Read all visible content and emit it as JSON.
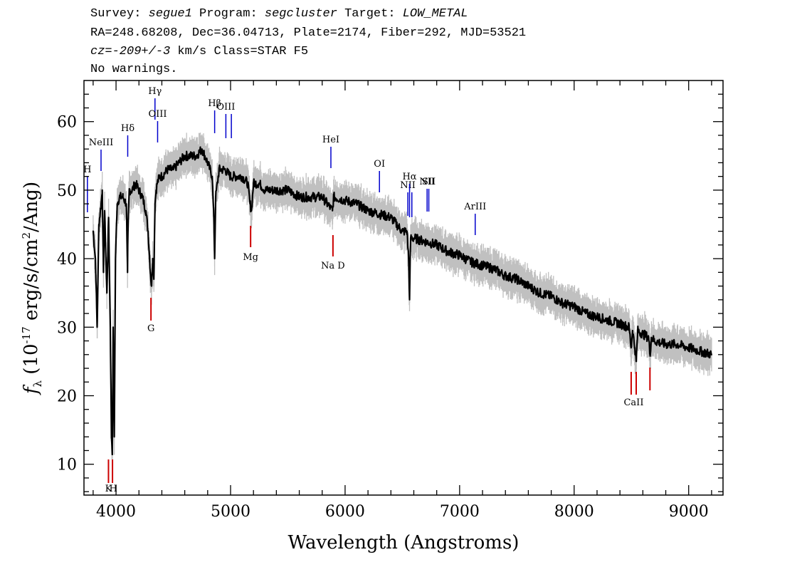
{
  "header": {
    "survey_label": "Survey:",
    "survey": "segue1",
    "program_label": "Program:",
    "program": "segcluster",
    "target_label": "Target:",
    "target": "LOW_METAL",
    "line2": "RA=248.68208, Dec=36.04713, Plate=2174, Fiber=292, MJD=53521",
    "cz_prefix": "cz=",
    "cz_value": "-209+/-3",
    "cz_suffix": " km/s Class=STAR F5",
    "line4": "No warnings."
  },
  "chart_data": {
    "type": "line",
    "xlabel": "Wavelength (Angstroms)",
    "ylabel": "f_λ (10^-17 erg/s/cm^2/Ang)",
    "xlim": [
      3720,
      9300
    ],
    "ylim": [
      5.5,
      66
    ],
    "xticks": [
      4000,
      5000,
      6000,
      7000,
      8000,
      9000
    ],
    "yticks": [
      10,
      20,
      30,
      40,
      50,
      60
    ],
    "grid": false,
    "series": [
      {
        "color": "#000000",
        "noise_color": "#c0c0c0",
        "x": [
          3800,
          3820,
          3835,
          3850,
          3870,
          3880,
          3890,
          3900,
          3920,
          3935,
          3950,
          3960,
          3968,
          3975,
          3985,
          3995,
          4010,
          4030,
          4060,
          4090,
          4100,
          4102,
          4115,
          4140,
          4170,
          4200,
          4230,
          4260,
          4280,
          4300,
          4310,
          4320,
          4330,
          4340,
          4350,
          4360,
          4380,
          4400,
          4450,
          4500,
          4550,
          4600,
          4650,
          4700,
          4750,
          4800,
          4840,
          4855,
          4861,
          4870,
          4900,
          4950,
          5000,
          5050,
          5100,
          5150,
          5170,
          5183,
          5200,
          5250,
          5300,
          5350,
          5400,
          5500,
          5600,
          5700,
          5800,
          5890,
          5900,
          6000,
          6100,
          6200,
          6300,
          6400,
          6500,
          6540,
          6555,
          6563,
          6572,
          6600,
          6700,
          6800,
          6900,
          7000,
          7100,
          7200,
          7300,
          7400,
          7500,
          7600,
          7700,
          7800,
          7900,
          8000,
          8100,
          8200,
          8300,
          8400,
          8480,
          8498,
          8510,
          8530,
          8542,
          8555,
          8600,
          8650,
          8662,
          8675,
          8700,
          8800,
          8900,
          9000,
          9100,
          9200
        ],
        "y": [
          44,
          40,
          30,
          45,
          48,
          50,
          38,
          47,
          35,
          46,
          30,
          14,
          12,
          30,
          14,
          40,
          48,
          49,
          49,
          48,
          38,
          42,
          50,
          50,
          51,
          50,
          49,
          47,
          44,
          38,
          36,
          40,
          37,
          48,
          50,
          51,
          52,
          52,
          53,
          53,
          54,
          55,
          55,
          55,
          56,
          54,
          52,
          45,
          40,
          49,
          53,
          53,
          52,
          52,
          52,
          51,
          48,
          47,
          51,
          51,
          50,
          50,
          50,
          50,
          49,
          49,
          49,
          47,
          49,
          48.5,
          48,
          47,
          46.5,
          46,
          44,
          44,
          40,
          34,
          43,
          43,
          42.5,
          42,
          41,
          40.5,
          39.5,
          39,
          38.5,
          37.5,
          37,
          36,
          35,
          34.5,
          33.5,
          33,
          32,
          31.5,
          31,
          30.5,
          30,
          27,
          29.5,
          27,
          25,
          29.5,
          29,
          28.5,
          26,
          28.5,
          28,
          27.5,
          27.5,
          27,
          26.5,
          26
        ]
      }
    ],
    "emission_lines": [
      {
        "label": "H",
        "x": 3750,
        "color": "#0000cc"
      },
      {
        "label": "NeIII",
        "x": 3869,
        "color": "#0000cc"
      },
      {
        "label": "Hδ",
        "x": 4102,
        "color": "#0000cc"
      },
      {
        "label": "Hγ",
        "x": 4340,
        "color": "#0000cc"
      },
      {
        "label": "OIII",
        "x": 4363,
        "color": "#0000cc"
      },
      {
        "label": "Hβ",
        "x": 4861,
        "color": "#0000cc"
      },
      {
        "label": "OIII",
        "x": 4959,
        "color": "#0000cc"
      },
      {
        "label": "",
        "x": 5007,
        "color": "#0000cc"
      },
      {
        "label": "HeI",
        "x": 5876,
        "color": "#0000cc"
      },
      {
        "label": "OI",
        "x": 6300,
        "color": "#0000cc"
      },
      {
        "label": "NII",
        "x": 6548,
        "color": "#0000cc"
      },
      {
        "label": "Hα",
        "x": 6563,
        "color": "#0000cc"
      },
      {
        "label": "",
        "x": 6583,
        "color": "#0000cc"
      },
      {
        "label": "NII",
        "x": 6716,
        "color": "#0000cc"
      },
      {
        "label": "SII",
        "x": 6731,
        "color": "#0000cc"
      },
      {
        "label": "ArIII",
        "x": 7136,
        "color": "#0000cc"
      }
    ],
    "absorption_lines": [
      {
        "label": "K",
        "x": 3934,
        "color": "#cc0000"
      },
      {
        "label": "H",
        "x": 3969,
        "color": "#cc0000"
      },
      {
        "label": "G",
        "x": 4305,
        "color": "#cc0000"
      },
      {
        "label": "Mg",
        "x": 5175,
        "color": "#cc0000"
      },
      {
        "label": "Na D",
        "x": 5894,
        "color": "#cc0000"
      },
      {
        "label": "CaII",
        "x": 8498,
        "color": "#cc0000"
      },
      {
        "label": "",
        "x": 8542,
        "color": "#cc0000"
      },
      {
        "label": "",
        "x": 8662,
        "color": "#cc0000"
      }
    ]
  }
}
